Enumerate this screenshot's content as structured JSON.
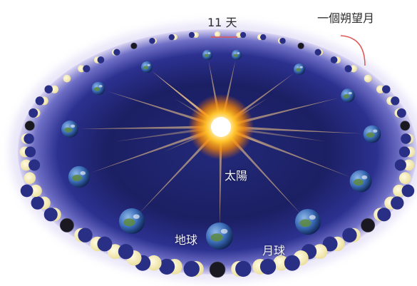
{
  "labels": {
    "gap_days": "11 天",
    "synodic_month": "一個朔望月",
    "sun": "太陽",
    "earth": "地球",
    "moon": "月球"
  },
  "colors": {
    "background": "#ffffff",
    "orbit_outer": "#dcd6f2",
    "orbit_mid": "#3c3f9e",
    "orbit_inner": "#161a52",
    "sun_core": "#ffffff",
    "sun_glow": "#ffb000",
    "sun_ray": "#ffd7a0",
    "moon_lit": "#fbf3c6",
    "moon_dark": "#1a1820",
    "earth_ocean": "#3d6fc4",
    "earth_land": "#5d8a3e",
    "annotation": "#e05555"
  },
  "diagram": {
    "earth_positions": 14,
    "moon_phase_cycle": [
      "new",
      "waxing-crescent",
      "first-quarter",
      "waxing-gibbous",
      "full",
      "waning-gibbous",
      "last-quarter",
      "waning-crescent"
    ],
    "annotations": [
      "gap-between-new-moons",
      "one-lunation-arc"
    ]
  }
}
